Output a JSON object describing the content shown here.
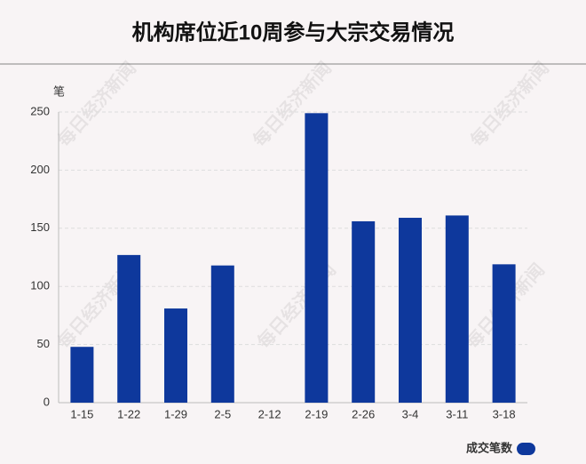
{
  "chart_data": {
    "type": "bar",
    "title": "机构席位近10周参与大宗交易情况",
    "y_unit": "笔",
    "categories": [
      "1-15",
      "1-22",
      "1-29",
      "2-5",
      "2-12",
      "2-19",
      "2-26",
      "3-4",
      "3-11",
      "3-18"
    ],
    "series": [
      {
        "name": "成交笔数",
        "color": "#0e389c",
        "values": [
          48,
          127,
          81,
          118,
          0,
          249,
          156,
          159,
          161,
          119
        ]
      }
    ],
    "ylim": [
      0,
      250
    ],
    "yticks": [
      0,
      50,
      100,
      150,
      200,
      250
    ],
    "grid": true,
    "legend": "bottom-right",
    "watermark": "每日经济新闻"
  }
}
